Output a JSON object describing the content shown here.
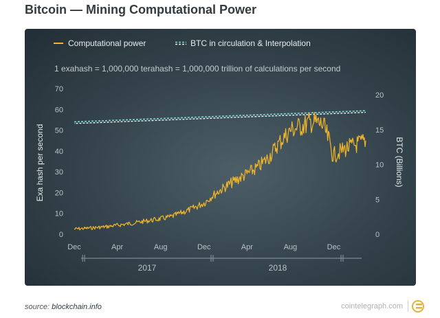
{
  "title": "Bitcoin — Mining Computational Power",
  "source": {
    "prefix": "source:",
    "link": "blockchain.info"
  },
  "brand": "cointelegraph.com",
  "chart_data": {
    "type": "line",
    "subtitle": "1 exahash = 1,000,000 terahash = 1,000,000 trillion of calculations per second",
    "legend": [
      {
        "label": "Computational power",
        "color": "#f2b62a"
      },
      {
        "label": "BTC in circulation & Interpolation",
        "color": "#7fd8d6"
      }
    ],
    "legend_position": "top-left",
    "ylabel_left": "Exa hash per second",
    "ylabel_right": "BTC (Billions)",
    "yticks_left": [
      "0",
      "10",
      "20",
      "30",
      "40",
      "50",
      "60",
      "70"
    ],
    "yticks_right": [
      "0",
      "5",
      "10",
      "15",
      "20"
    ],
    "ylim_left": [
      0,
      70
    ],
    "ylim_right": [
      0,
      20
    ],
    "x_ticks": [
      "Dec",
      "Apr",
      "Aug",
      "Dec",
      "Apr",
      "Aug",
      "Dec"
    ],
    "x_years": [
      "2017",
      "2018"
    ],
    "grid": false,
    "series": [
      {
        "name": "Computational power",
        "axis": "left",
        "color": "#f2b62a",
        "x": [
          "2016-12-01",
          "2017-01-01",
          "2017-02-01",
          "2017-03-01",
          "2017-04-01",
          "2017-05-01",
          "2017-06-01",
          "2017-07-01",
          "2017-08-01",
          "2017-09-01",
          "2017-10-01",
          "2017-11-01",
          "2017-12-01",
          "2018-01-01",
          "2018-02-01",
          "2018-03-01",
          "2018-04-01",
          "2018-05-01",
          "2018-06-01",
          "2018-07-01",
          "2018-08-01",
          "2018-09-01",
          "2018-10-01",
          "2018-11-01",
          "2018-12-01",
          "2019-01-01",
          "2019-02-01",
          "2019-03-01"
        ],
        "values": [
          2.5,
          2.8,
          3.2,
          3.6,
          4.3,
          5.0,
          5.8,
          6.6,
          7.4,
          8.5,
          10.5,
          12.5,
          15.0,
          19.5,
          23.0,
          26.0,
          29.0,
          32.0,
          37.0,
          44.0,
          50.0,
          52.0,
          54.0,
          52.5,
          38.0,
          41.0,
          43.0,
          45.0
        ]
      },
      {
        "name": "BTC in circulation & Interpolation",
        "axis": "right",
        "color": "#7fd8d6",
        "x": [
          "2016-12-01",
          "2019-03-01"
        ],
        "values": [
          16.0,
          17.6
        ]
      }
    ]
  }
}
